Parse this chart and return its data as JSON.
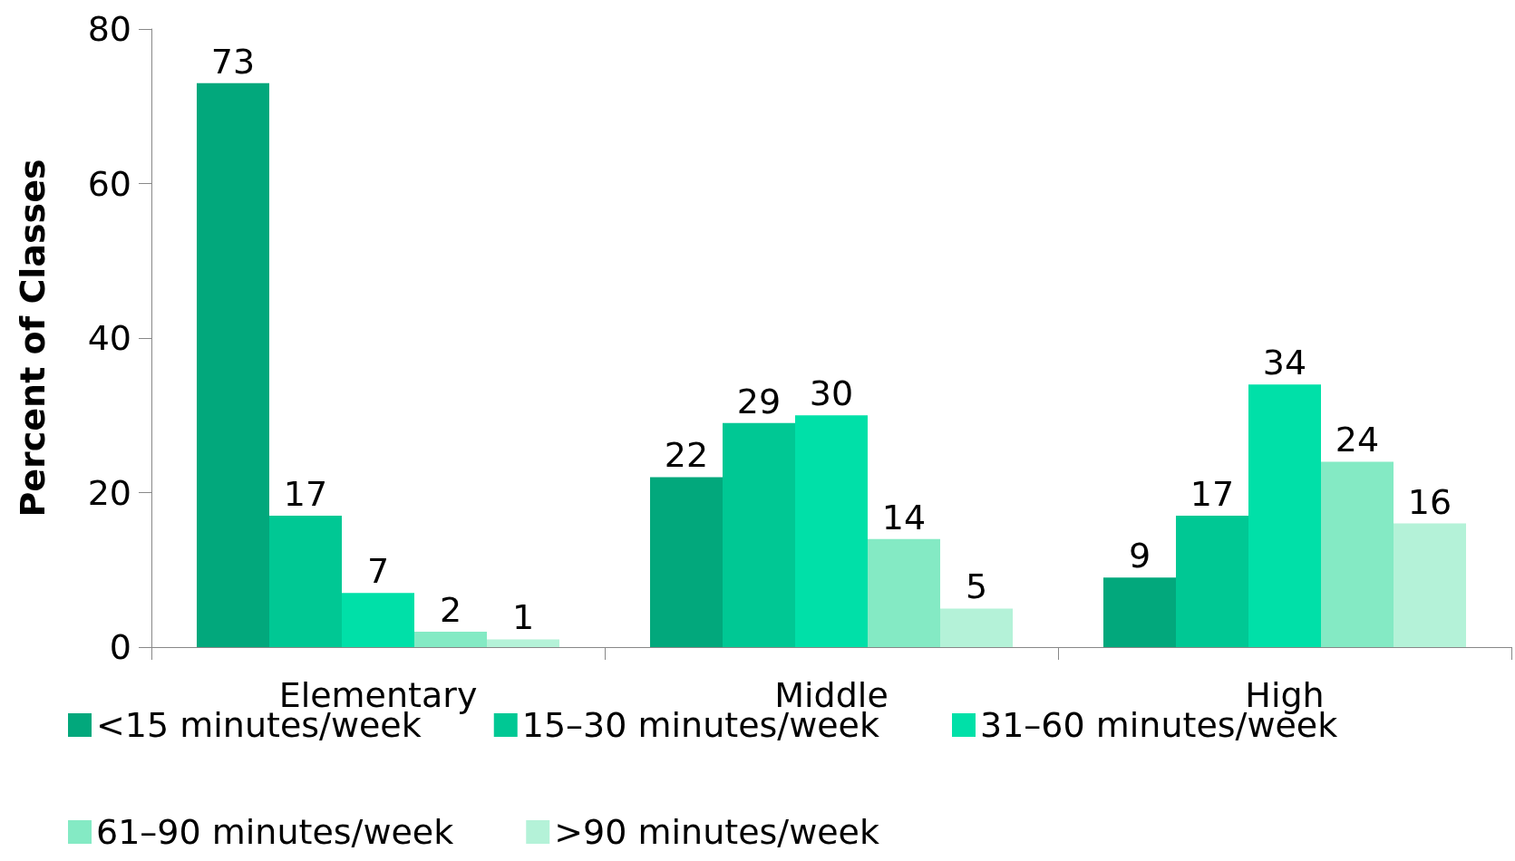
{
  "chart_data": {
    "type": "bar",
    "ylabel": "Percent of Classes",
    "categories": [
      "Elementary",
      "Middle",
      "High"
    ],
    "series": [
      {
        "name": "<15 minutes/week",
        "color": "#02a87c",
        "values": [
          73,
          22,
          9
        ]
      },
      {
        "name": "15–30 minutes/week",
        "color": "#00c894",
        "values": [
          17,
          29,
          17
        ]
      },
      {
        "name": "31–60 minutes/week",
        "color": "#00e0a8",
        "values": [
          7,
          30,
          34
        ]
      },
      {
        "name": "61–90 minutes/week",
        "color": "#84eac4",
        "values": [
          2,
          14,
          24
        ]
      },
      {
        "name": ">90 minutes/week",
        "color": "#b4f2d8",
        "values": [
          1,
          5,
          16
        ]
      }
    ],
    "ylim": [
      0,
      80
    ],
    "yticks": [
      0,
      20,
      40,
      60,
      80
    ],
    "grid": false,
    "legend": "bottom",
    "data_labels": true
  }
}
